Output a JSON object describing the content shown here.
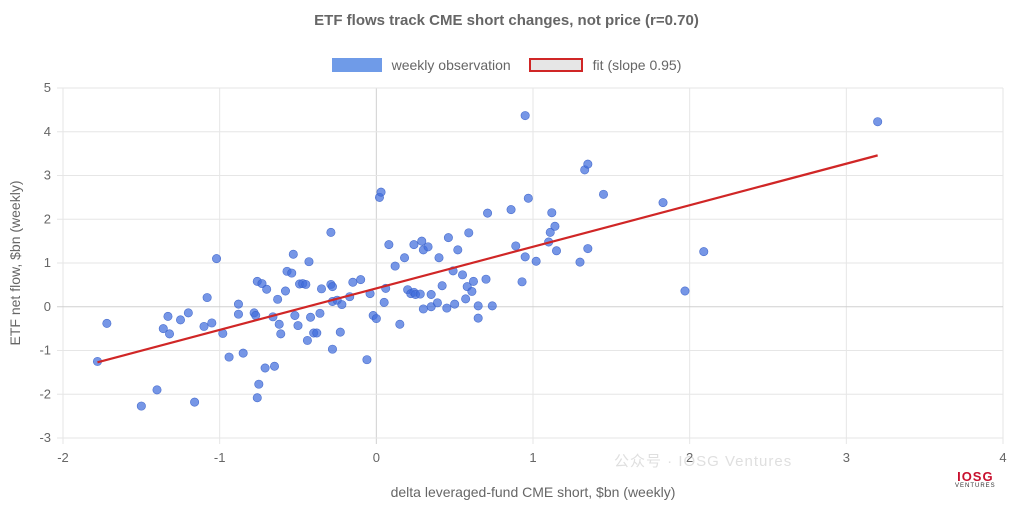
{
  "chart_data": {
    "type": "scatter",
    "title": "ETF flows track CME short changes, not price (r=0.70)",
    "xlabel": "delta leveraged-fund CME short, $bn (weekly)",
    "ylabel": "ETF net flow, $bn (weekly)",
    "xlim": [
      -2,
      4
    ],
    "ylim": [
      -3,
      5
    ],
    "xticks": [
      -2,
      -1,
      0,
      1,
      2,
      3,
      4
    ],
    "yticks": [
      -3,
      -2,
      -1,
      0,
      1,
      2,
      3,
      4,
      5
    ],
    "grid": true,
    "legend_position": "top",
    "series": [
      {
        "name": "weekly observation",
        "type": "scatter",
        "color": "#6f9be8",
        "points": [
          [
            -1.78,
            -1.25
          ],
          [
            -1.72,
            -0.38
          ],
          [
            -1.5,
            -2.27
          ],
          [
            -1.4,
            -1.9
          ],
          [
            -1.36,
            -0.5
          ],
          [
            -1.33,
            -0.22
          ],
          [
            -1.32,
            -0.62
          ],
          [
            -1.25,
            -0.3
          ],
          [
            -1.2,
            -0.14
          ],
          [
            -1.16,
            -2.18
          ],
          [
            -1.1,
            -0.45
          ],
          [
            -1.08,
            0.21
          ],
          [
            -1.05,
            -0.37
          ],
          [
            -1.02,
            1.1
          ],
          [
            -0.98,
            -0.61
          ],
          [
            -0.94,
            -1.15
          ],
          [
            -0.88,
            -0.17
          ],
          [
            -0.88,
            0.06
          ],
          [
            -0.85,
            -1.06
          ],
          [
            -0.78,
            -0.14
          ],
          [
            -0.77,
            -0.2
          ],
          [
            -0.76,
            0.58
          ],
          [
            -0.76,
            -2.08
          ],
          [
            -0.75,
            -1.77
          ],
          [
            -0.73,
            0.53
          ],
          [
            -0.71,
            -1.4
          ],
          [
            -0.7,
            0.4
          ],
          [
            -0.66,
            -0.23
          ],
          [
            -0.65,
            -1.36
          ],
          [
            -0.63,
            0.17
          ],
          [
            -0.62,
            -0.4
          ],
          [
            -0.61,
            -0.62
          ],
          [
            -0.58,
            0.36
          ],
          [
            -0.57,
            0.81
          ],
          [
            -0.54,
            0.77
          ],
          [
            -0.53,
            1.2
          ],
          [
            -0.52,
            -0.2
          ],
          [
            -0.5,
            -0.43
          ],
          [
            -0.49,
            0.52
          ],
          [
            -0.47,
            0.53
          ],
          [
            -0.45,
            0.51
          ],
          [
            -0.44,
            -0.77
          ],
          [
            -0.43,
            1.03
          ],
          [
            -0.42,
            -0.24
          ],
          [
            -0.4,
            -0.6
          ],
          [
            -0.38,
            -0.6
          ],
          [
            -0.36,
            -0.15
          ],
          [
            -0.35,
            0.41
          ],
          [
            -0.29,
            1.7
          ],
          [
            -0.29,
            0.51
          ],
          [
            -0.28,
            0.46
          ],
          [
            -0.28,
            0.12
          ],
          [
            -0.28,
            -0.97
          ],
          [
            -0.25,
            0.15
          ],
          [
            -0.23,
            -0.58
          ],
          [
            -0.22,
            0.05
          ],
          [
            -0.17,
            0.23
          ],
          [
            -0.15,
            0.56
          ],
          [
            -0.1,
            0.62
          ],
          [
            -0.06,
            -1.21
          ],
          [
            -0.04,
            0.3
          ],
          [
            -0.02,
            -0.2
          ],
          [
            0.0,
            -0.27
          ],
          [
            0.02,
            2.5
          ],
          [
            0.03,
            2.62
          ],
          [
            0.05,
            0.1
          ],
          [
            0.06,
            0.42
          ],
          [
            0.08,
            1.42
          ],
          [
            0.12,
            0.93
          ],
          [
            0.15,
            -0.4
          ],
          [
            0.18,
            1.12
          ],
          [
            0.2,
            0.39
          ],
          [
            0.22,
            0.3
          ],
          [
            0.24,
            0.33
          ],
          [
            0.25,
            0.28
          ],
          [
            0.24,
            1.42
          ],
          [
            0.28,
            0.29
          ],
          [
            0.29,
            1.5
          ],
          [
            0.3,
            -0.05
          ],
          [
            0.3,
            1.3
          ],
          [
            0.33,
            1.37
          ],
          [
            0.35,
            0.28
          ],
          [
            0.35,
            0.0
          ],
          [
            0.39,
            0.09
          ],
          [
            0.4,
            1.12
          ],
          [
            0.42,
            0.48
          ],
          [
            0.45,
            -0.03
          ],
          [
            0.46,
            1.58
          ],
          [
            0.49,
            0.82
          ],
          [
            0.5,
            0.06
          ],
          [
            0.52,
            1.3
          ],
          [
            0.55,
            0.73
          ],
          [
            0.57,
            0.18
          ],
          [
            0.58,
            0.46
          ],
          [
            0.59,
            1.69
          ],
          [
            0.61,
            0.35
          ],
          [
            0.62,
            0.58
          ],
          [
            0.65,
            -0.26
          ],
          [
            0.65,
            0.02
          ],
          [
            0.7,
            0.63
          ],
          [
            0.71,
            2.14
          ],
          [
            0.74,
            0.02
          ],
          [
            0.86,
            2.22
          ],
          [
            0.89,
            1.39
          ],
          [
            0.93,
            0.57
          ],
          [
            0.95,
            4.37
          ],
          [
            0.95,
            1.14
          ],
          [
            0.97,
            2.48
          ],
          [
            1.02,
            1.04
          ],
          [
            1.1,
            1.48
          ],
          [
            1.11,
            1.7
          ],
          [
            1.12,
            2.15
          ],
          [
            1.15,
            1.28
          ],
          [
            1.14,
            1.84
          ],
          [
            1.3,
            1.02
          ],
          [
            1.33,
            3.13
          ],
          [
            1.35,
            1.33
          ],
          [
            1.35,
            3.26
          ],
          [
            1.45,
            2.57
          ],
          [
            1.83,
            2.38
          ],
          [
            1.97,
            0.36
          ],
          [
            2.09,
            1.26
          ],
          [
            3.2,
            4.23
          ]
        ]
      },
      {
        "name": "fit (slope 0.95)",
        "type": "line",
        "color": "#d02626",
        "x": [
          -1.78,
          3.2
        ],
        "y": [
          -1.27,
          3.46
        ]
      }
    ]
  },
  "watermark_text": "公众号 · IOSG Ventures",
  "logo": {
    "mark": "IOSG",
    "sub": "VENTURES"
  }
}
